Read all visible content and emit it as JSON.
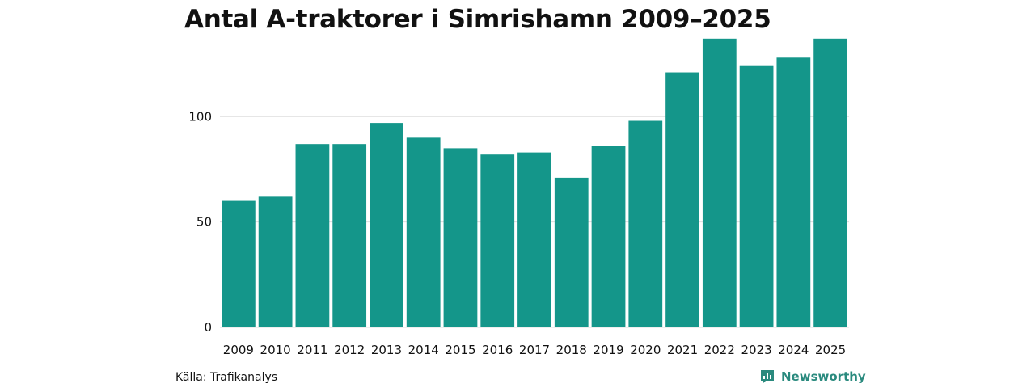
{
  "chart_data": {
    "type": "bar",
    "title": "Antal A-traktorer i Simrishamn 2009–2025",
    "xlabel": "",
    "ylabel": "",
    "categories": [
      "2009",
      "2010",
      "2011",
      "2012",
      "2013",
      "2014",
      "2015",
      "2016",
      "2017",
      "2018",
      "2019",
      "2020",
      "2021",
      "2022",
      "2023",
      "2024",
      "2025"
    ],
    "values": [
      60,
      62,
      87,
      87,
      97,
      90,
      85,
      82,
      83,
      71,
      86,
      98,
      121,
      137,
      124,
      128,
      137
    ],
    "ylim": [
      0,
      140
    ],
    "yticks": [
      0,
      50,
      100
    ],
    "grid": true,
    "bar_color": "#14968a",
    "grid_color": "#dddddd"
  },
  "footer": {
    "source": "Källa: Trafikanalys",
    "brand": "Newsworthy",
    "brand_color": "#2a8a7e"
  }
}
